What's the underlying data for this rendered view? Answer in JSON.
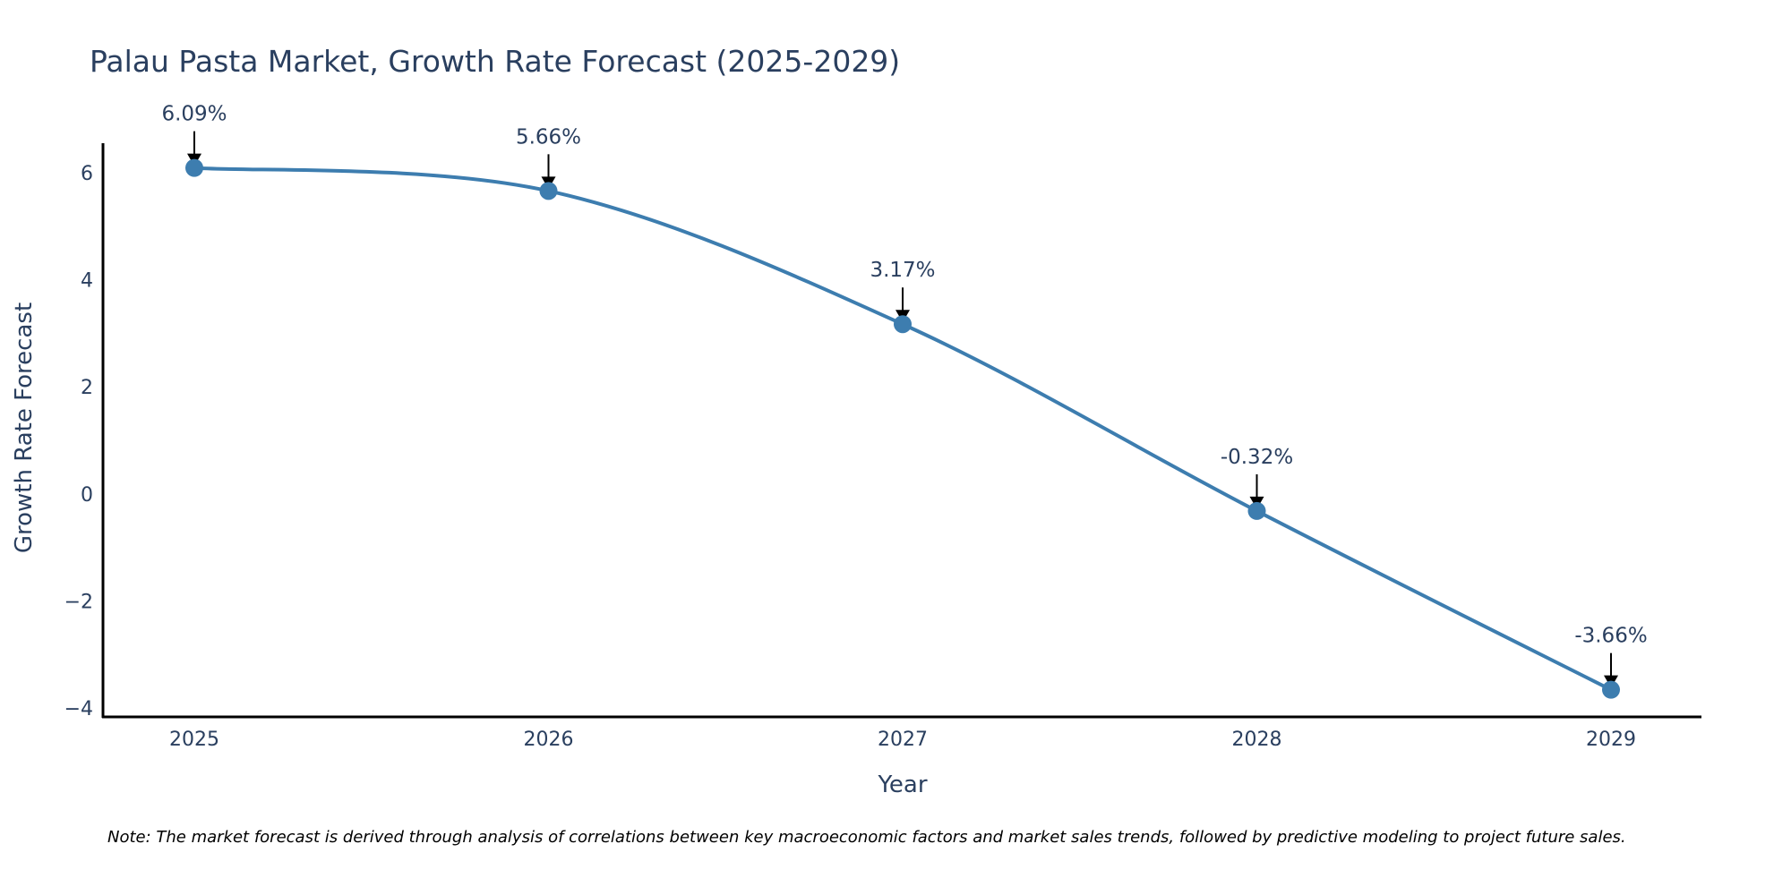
{
  "chart_data": {
    "type": "line",
    "title": "Palau Pasta Market, Growth Rate Forecast (2025-2029)",
    "xlabel": "Year",
    "ylabel": "Growth Rate Forecast",
    "categories": [
      "2025",
      "2026",
      "2027",
      "2028",
      "2029"
    ],
    "series": [
      {
        "name": "Growth Rate Forecast",
        "values": [
          6.09,
          5.66,
          3.17,
          -0.32,
          -3.66
        ],
        "labels": [
          "6.09%",
          "5.66%",
          "3.17%",
          "-0.32%",
          "-3.66%"
        ]
      }
    ],
    "ylim": [
      -4.2,
      6.6
    ],
    "yticks": [
      6,
      4,
      2,
      0,
      -2,
      -4
    ],
    "ytick_labels": [
      "6",
      "4",
      "2",
      "0",
      "−2",
      "−4"
    ],
    "grid": false,
    "line_color": "#3d7daf",
    "marker_color": "#3d7daf",
    "note": "Note: The market forecast is derived through analysis of correlations between key macroeconomic factors and market sales trends, followed by predictive modeling to project future sales."
  }
}
